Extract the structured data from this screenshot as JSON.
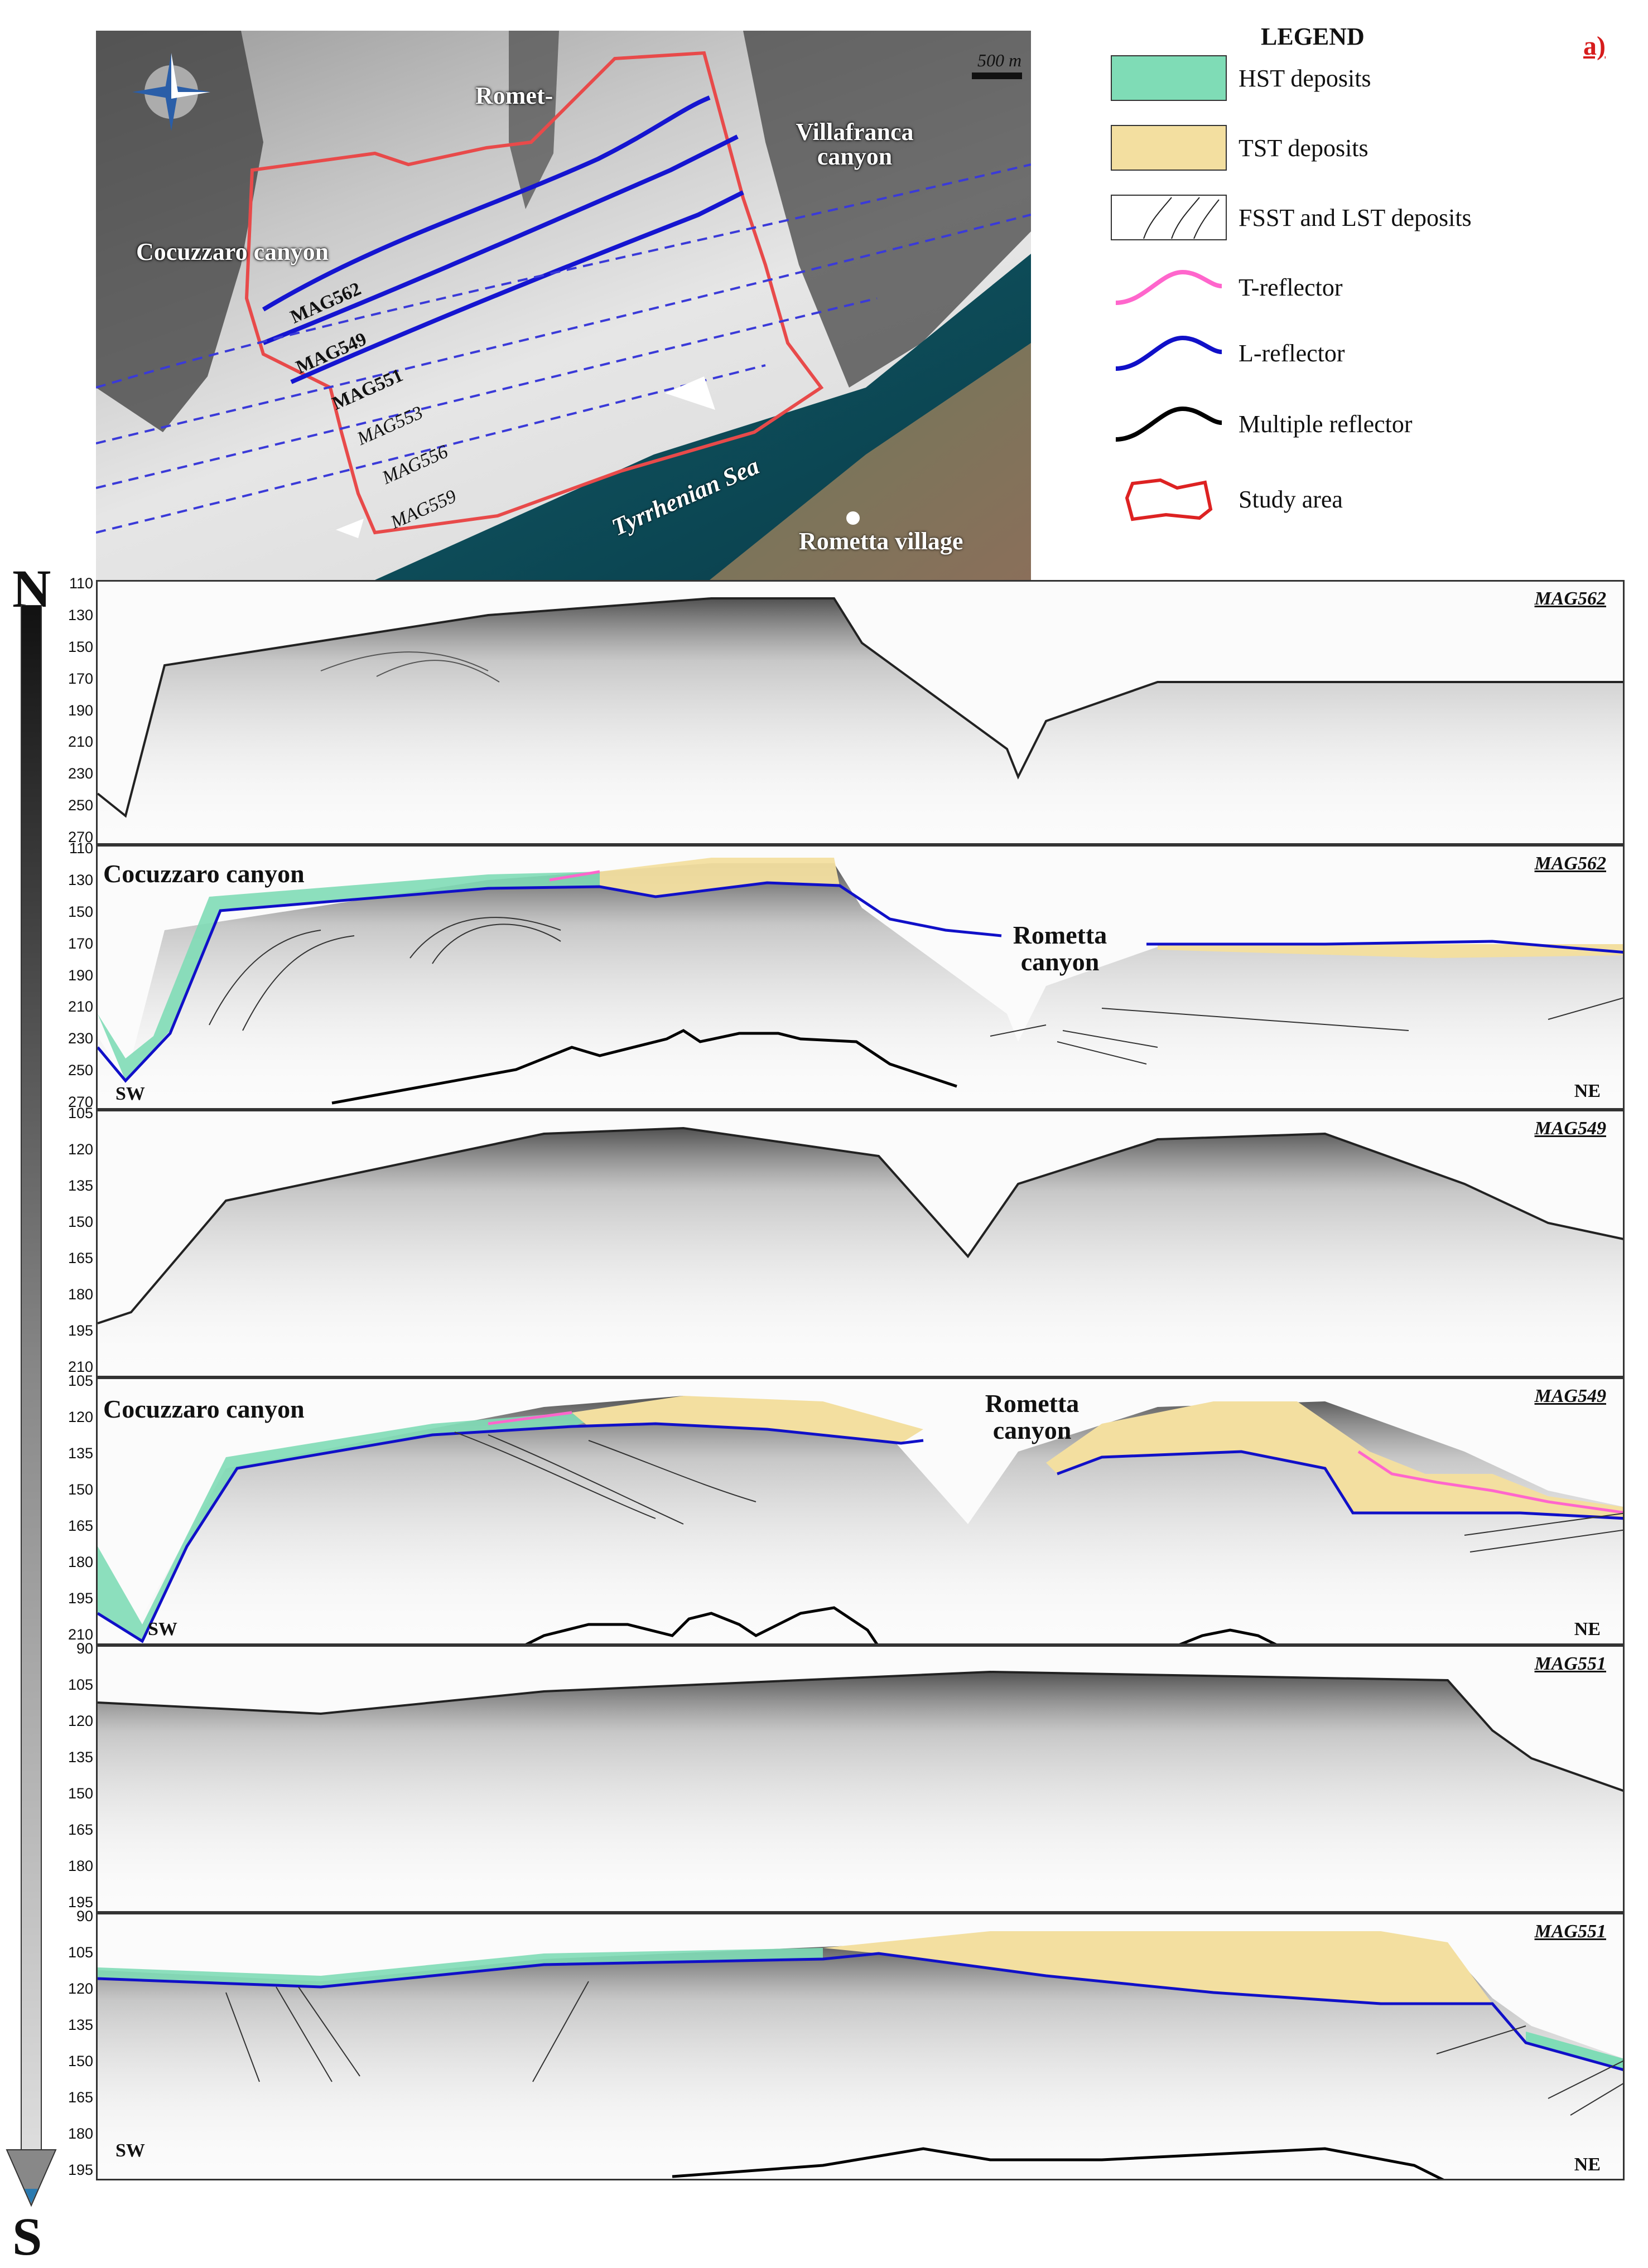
{
  "panel_letter": "a)",
  "map": {
    "labels": {
      "cocuzzaro": "Cocuzzaro canyon",
      "rometta": "Romet-",
      "villafranca": "Villafranca canyon",
      "sea": "Tyrrhenian Sea",
      "village": "Rometta village"
    },
    "scale": "500 m",
    "lines": [
      "MAG562",
      "MAG549",
      "MAG551",
      "MAG553",
      "MAG556",
      "MAG559"
    ]
  },
  "legend": {
    "title": "LEGEND",
    "items": [
      {
        "label": "HST deposits",
        "color": "#7fdcb6"
      },
      {
        "label": "TST deposits",
        "color": "#f3dfa0"
      },
      {
        "label": "FSST and LST deposits",
        "color": "#ffffff"
      },
      {
        "label": "T-reflector",
        "color": "#ff66cc"
      },
      {
        "label": "L-reflector",
        "color": "#1010c8"
      },
      {
        "label": "Multiple reflector",
        "color": "#000000"
      },
      {
        "label": "Study area",
        "color": "#dd2222"
      }
    ]
  },
  "orientation": {
    "north": "N",
    "south": "S"
  },
  "profiles": [
    {
      "title": "MAG562",
      "ticks": [
        "110",
        "130",
        "150",
        "170",
        "190",
        "210",
        "230",
        "250",
        "270"
      ],
      "sw": "",
      "ne": ""
    },
    {
      "title": "MAG562",
      "ticks": [
        "110",
        "130",
        "150",
        "170",
        "190",
        "210",
        "230",
        "250",
        "270"
      ],
      "sw": "SW",
      "ne": "NE",
      "canyon_left": "Cocuzzaro canyon",
      "canyon_mid": "Rometta canyon"
    },
    {
      "title": "MAG549",
      "ticks": [
        "105",
        "120",
        "135",
        "150",
        "165",
        "180",
        "195",
        "210"
      ],
      "sw": "",
      "ne": ""
    },
    {
      "title": "MAG549",
      "ticks": [
        "105",
        "120",
        "135",
        "150",
        "165",
        "180",
        "195",
        "210"
      ],
      "sw": "SW",
      "ne": "NE",
      "canyon_left": "Cocuzzaro canyon",
      "canyon_mid": "Rometta canyon"
    },
    {
      "title": "MAG551",
      "ticks": [
        "90",
        "105",
        "120",
        "135",
        "150",
        "165",
        "180",
        "195"
      ],
      "sw": "",
      "ne": ""
    },
    {
      "title": "MAG551",
      "ticks": [
        "90",
        "105",
        "120",
        "135",
        "150",
        "165",
        "180",
        "195"
      ],
      "sw": "SW",
      "ne": "NE"
    }
  ]
}
